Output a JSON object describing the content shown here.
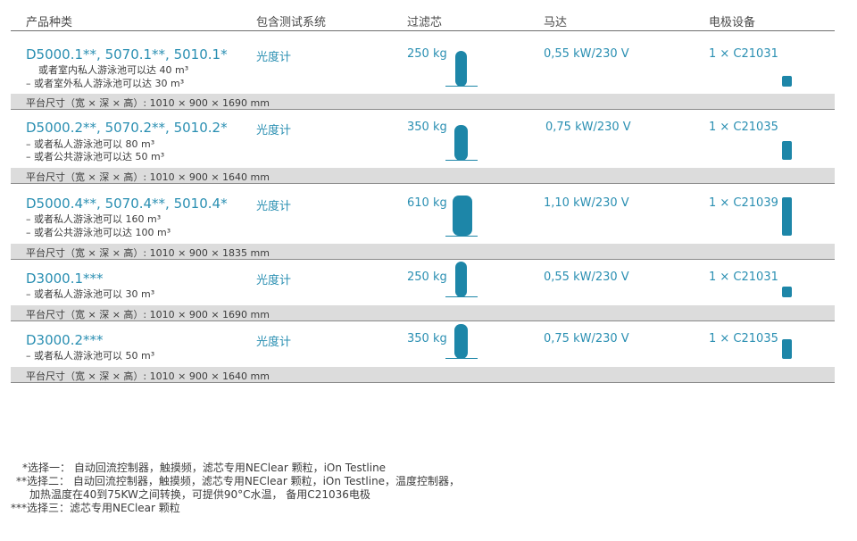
{
  "headers": {
    "product": "产品种类",
    "measuring": "包含测试系统",
    "filter": "过滤芯",
    "pump": "马达",
    "electrode": "电极设备"
  },
  "rows": [
    {
      "model": "D5000.1**, 5070.1**, 5010.1*",
      "subs": [
        "或者室内私人游泳池可以达 40 m³",
        "–  或者室外私人游泳池可以达 30 m³"
      ],
      "measuring": "光度计",
      "filter": "250 kg",
      "pump": "0,55 kW/230 V",
      "electrode": "1 × C21031",
      "dims": "平台尺寸（宽 × 深 × 高）: 1010 × 900 × 1690 mm"
    },
    {
      "model": "D5000.2**, 5070.2**, 5010.2*",
      "subs": [
        "–  或者私人游泳池可以 80 m³",
        "–  或者公共游泳池可以达 50 m³"
      ],
      "measuring": "光度计",
      "filter": "350 kg",
      "pump": "0,75 kW/230 V",
      "electrode": "1 × C21035",
      "dims": "平台尺寸（宽 × 深 × 高）: 1010 × 900 × 1640 mm"
    },
    {
      "model": "D5000.4**, 5070.4**, 5010.4*",
      "subs": [
        "–  或者私人游泳池可以 160 m³",
        "–  或者公共游泳池可以达 100 m³"
      ],
      "measuring": "光度计",
      "filter": "610 kg",
      "pump": "1,10 kW/230 V",
      "electrode": "1 × C21039",
      "dims": "平台尺寸（宽 × 深 × 高）: 1010 × 900 × 1835 mm"
    },
    {
      "model": "D3000.1***",
      "subs": [
        "–  或者私人游泳池可以 30 m³"
      ],
      "measuring": "光度计",
      "filter": "250 kg",
      "pump": "0,55 kW/230 V",
      "electrode": "1 × C21031",
      "dims": "平台尺寸（宽 × 深 × 高）: 1010 × 900 × 1690 mm"
    },
    {
      "model": "D3000.2***",
      "subs": [
        "–  或者私人游泳池可以 50 m³"
      ],
      "measuring": "光度计",
      "filter": "350 kg",
      "pump": "0,75 kW/230 V",
      "electrode": "1 × C21035",
      "dims": "平台尺寸（宽 × 深 × 高）: 1010 × 900 × 1640 mm"
    }
  ],
  "footnotes": [
    "*选择一：  自动回流控制器，触摸频，滤芯专用NEClear 颗粒，iOn Testline",
    "**选择二：  自动回流控制器，触摸频，滤芯专用NEClear 颗粒，iOn Testline，温度控制器，",
    "加热温度在40到75KW之间转换，可提供90°C水温，  备用C21036电极",
    "***选择三：滤芯专用NEClear 颗粒"
  ],
  "colors": {
    "accent": "#2a8fb2",
    "icon": "#1d86a8",
    "band": "#dcdcdc"
  },
  "icons": {
    "filter": "filter-tank-icon",
    "electrode": "electrode-cell-icon"
  }
}
